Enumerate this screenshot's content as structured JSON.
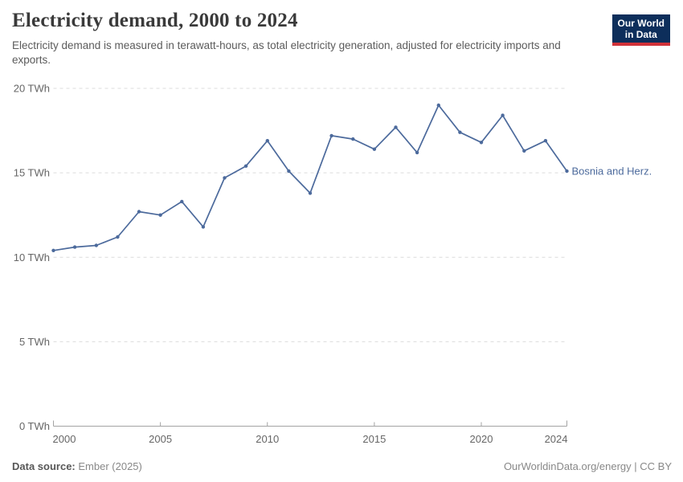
{
  "header": {
    "title": "Electricity demand, 2000 to 2024",
    "subtitle": "Electricity demand is measured in terawatt-hours, as total electricity generation, adjusted for electricity imports and exports.",
    "logo": {
      "line1": "Our World",
      "line2": "in Data"
    }
  },
  "footer": {
    "source_label": "Data source:",
    "source_value": "Ember (2025)",
    "credit": "OurWorldinData.org/energy | CC BY"
  },
  "colors": {
    "line": "#4c6a9c",
    "series_label": "#4c6a9c",
    "grid": "#dcdcdc",
    "axis": "#a3a3a3",
    "tick_text": "#666666",
    "logo_bg": "#0d2e5b",
    "logo_red": "#d13239"
  },
  "chart_data": {
    "type": "line",
    "title": "Electricity demand, 2000 to 2024",
    "xlabel": "",
    "ylabel": "TWh",
    "x": [
      2000,
      2001,
      2002,
      2003,
      2004,
      2005,
      2006,
      2007,
      2008,
      2009,
      2010,
      2011,
      2012,
      2013,
      2014,
      2015,
      2016,
      2017,
      2018,
      2019,
      2020,
      2021,
      2022,
      2023,
      2024
    ],
    "series": [
      {
        "name": "Bosnia and Herz.",
        "color": "#4c6a9c",
        "values": [
          10.4,
          10.6,
          10.7,
          11.2,
          12.7,
          12.5,
          13.3,
          11.8,
          14.7,
          15.4,
          16.9,
          15.1,
          13.8,
          17.2,
          17.0,
          16.4,
          17.7,
          16.2,
          19.0,
          17.4,
          16.8,
          18.4,
          16.3,
          16.9,
          15.1
        ]
      }
    ],
    "ylim": [
      0,
      20
    ],
    "yticks": [
      0,
      5,
      10,
      15,
      20
    ],
    "ytick_labels": [
      "0 TWh",
      "5 TWh",
      "10 TWh",
      "15 TWh",
      "20 TWh"
    ],
    "xticks": [
      2000,
      2005,
      2010,
      2015,
      2020,
      2024
    ],
    "xtick_labels": [
      "2000",
      "2005",
      "2010",
      "2015",
      "2020",
      "2024"
    ],
    "grid": "horizontal-dashed",
    "legend_position": "end-of-line-label",
    "markers": true
  }
}
